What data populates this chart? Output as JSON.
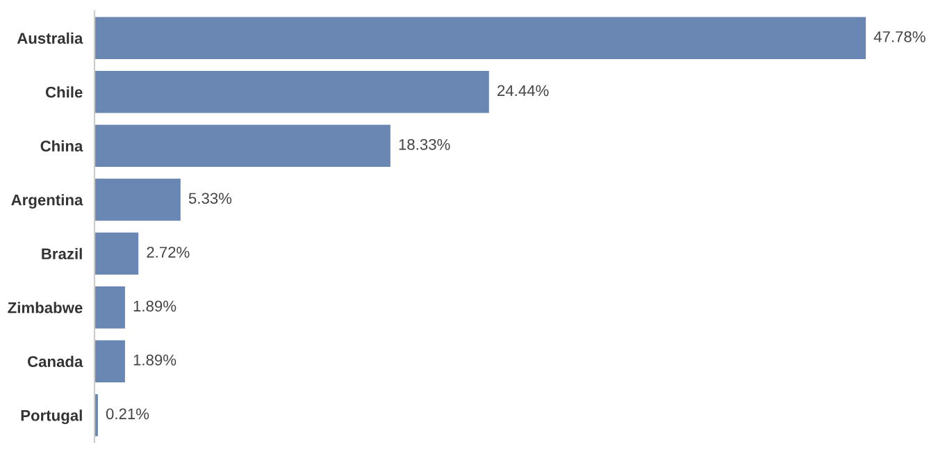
{
  "chart_data": {
    "type": "bar",
    "orientation": "horizontal",
    "categories": [
      "Australia",
      "Chile",
      "China",
      "Argentina",
      "Brazil",
      "Zimbabwe",
      "Canada",
      "Portugal"
    ],
    "values": [
      47.78,
      24.44,
      18.33,
      5.33,
      2.72,
      1.89,
      1.89,
      0.21
    ],
    "value_labels": [
      "47.78%",
      "24.44%",
      "18.33%",
      "5.33%",
      "2.72%",
      "1.89%",
      "1.89%",
      "0.21%"
    ],
    "color": "#6a86b2",
    "grid": false,
    "legend": false
  }
}
